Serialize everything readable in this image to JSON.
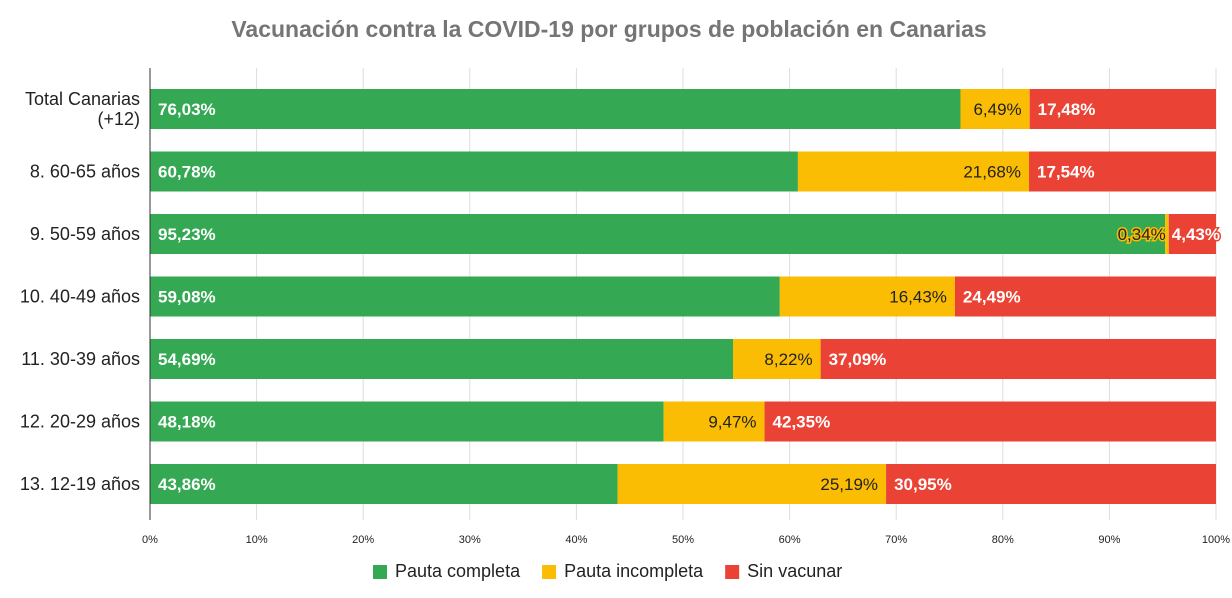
{
  "chart_data": {
    "type": "bar",
    "orientation": "horizontal",
    "stacked": "percent",
    "title": "Vacunación contra la COVID-19 por grupos de población en Canarias",
    "xlabel": "",
    "ylabel": "",
    "xlim": [
      0,
      100
    ],
    "grid": true,
    "legend_position": "bottom",
    "categories": [
      "Total Canarias (+12)",
      "8. 60-65 años",
      "9. 50-59 años",
      "10. 40-49 años",
      "11. 30-39 años",
      "12. 20-29 años",
      "13. 12-19 años"
    ],
    "category_lines": [
      [
        "Total Canarias",
        "(+12)"
      ],
      [
        "8. 60-65 años"
      ],
      [
        "9. 50-59 años"
      ],
      [
        "10. 40-49 años"
      ],
      [
        "11. 30-39 años"
      ],
      [
        "12. 20-29 años"
      ],
      [
        "13. 12-19 años"
      ]
    ],
    "x_ticks": [
      "0%",
      "10%",
      "20%",
      "30%",
      "40%",
      "50%",
      "60%",
      "70%",
      "80%",
      "90%",
      "100%"
    ],
    "series": [
      {
        "name": "Pauta completa",
        "color": "#34a853",
        "label_color": "#ffffff",
        "values": [
          76.03,
          60.78,
          95.23,
          59.08,
          54.69,
          48.18,
          43.86
        ],
        "labels": [
          "76,03%",
          "60,78%",
          "95,23%",
          "59,08%",
          "54,69%",
          "48,18%",
          "43,86%"
        ]
      },
      {
        "name": "Pauta incompleta",
        "color": "#fbbc04",
        "label_color": "#222222",
        "values": [
          6.49,
          21.68,
          0.34,
          16.43,
          8.22,
          9.47,
          25.19
        ],
        "labels": [
          "6,49%",
          "21,68%",
          "0,34%",
          "16,43%",
          "8,22%",
          "9,47%",
          "25,19%"
        ]
      },
      {
        "name": "Sin vacunar",
        "color": "#ea4335",
        "label_color": "#ffffff",
        "values": [
          17.48,
          17.54,
          4.43,
          24.49,
          37.09,
          42.35,
          30.95
        ],
        "labels": [
          "17,48%",
          "17,54%",
          "4,43%",
          "24,49%",
          "37,09%",
          "42,35%",
          "30,95%"
        ]
      }
    ]
  }
}
